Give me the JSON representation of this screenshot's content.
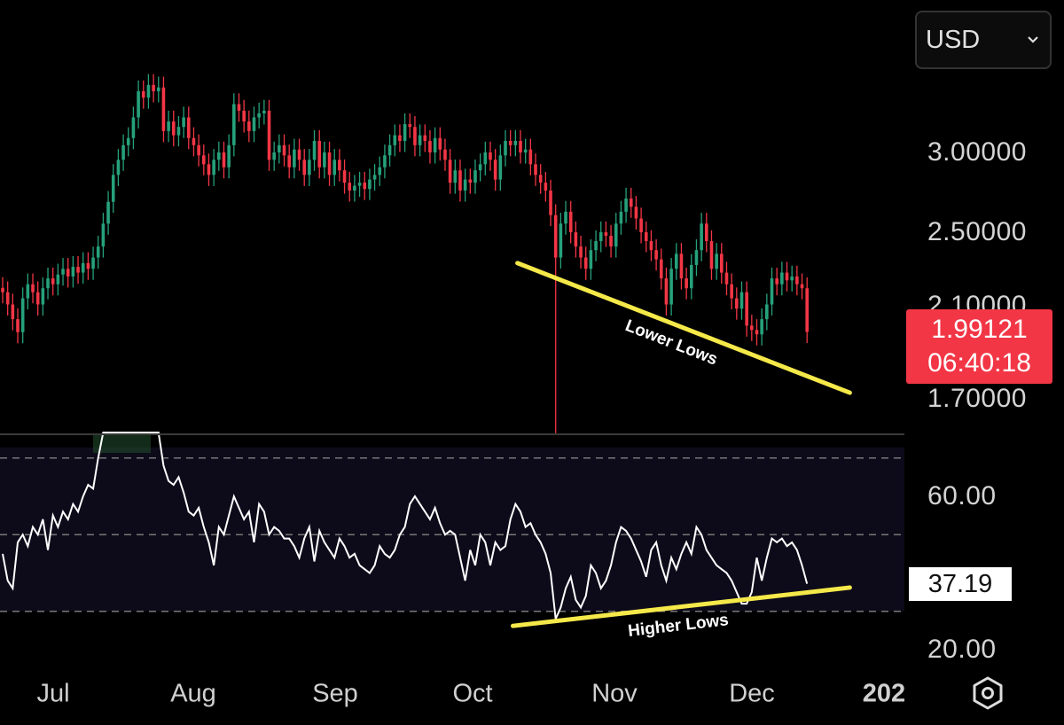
{
  "currency_selector": {
    "value": "USD"
  },
  "current_price": {
    "price": "1.99121",
    "countdown": "06:40:18",
    "color": "#f23645"
  },
  "rsi_current": {
    "value": "37.19"
  },
  "colors": {
    "up": "#26a17b",
    "down": "#f23645",
    "trendline": "#f5e94a",
    "rsi_line": "#ffffff",
    "rsi_band": "#0d0b1a"
  },
  "chart_data": [
    {
      "type": "candlestick",
      "scale": "log",
      "price_axis_labels": [
        "3.00000",
        "2.50000",
        "2.10000",
        "1.70000"
      ],
      "price_axis_values": [
        3.0,
        2.5,
        2.1,
        1.7
      ],
      "x_tick_labels": [
        "Jul",
        "Aug",
        "Sep",
        "Oct",
        "Nov",
        "Dec",
        "202"
      ],
      "x_tick_index": [
        10,
        38,
        66,
        93.5,
        121.7,
        149,
        175
      ],
      "closes": [
        2.18,
        2.12,
        2.05,
        1.99,
        2.15,
        2.22,
        2.18,
        2.12,
        2.2,
        2.25,
        2.22,
        2.27,
        2.3,
        2.26,
        2.31,
        2.28,
        2.33,
        2.3,
        2.36,
        2.42,
        2.55,
        2.68,
        2.85,
        2.95,
        3.05,
        3.1,
        3.25,
        3.45,
        3.4,
        3.5,
        3.45,
        3.48,
        3.15,
        3.22,
        3.12,
        3.18,
        3.25,
        3.1,
        3.05,
        2.98,
        2.92,
        2.85,
        2.95,
        3.0,
        2.9,
        3.05,
        3.35,
        3.3,
        3.22,
        3.15,
        3.25,
        3.28,
        3.3,
        2.95,
        3.0,
        3.05,
        2.98,
        2.9,
        3.02,
        2.95,
        2.85,
        2.95,
        3.08,
        2.9,
        3.0,
        2.85,
        2.95,
        2.88,
        2.8,
        2.75,
        2.78,
        2.8,
        2.76,
        2.82,
        2.85,
        2.9,
        2.98,
        3.05,
        3.12,
        3.08,
        3.2,
        3.18,
        3.05,
        3.12,
        3.08,
        3.0,
        3.1,
        3.02,
        2.95,
        2.8,
        2.88,
        2.75,
        2.82,
        2.8,
        2.88,
        2.92,
        3.0,
        2.95,
        2.82,
        2.98,
        3.08,
        3.05,
        3.08,
        3.0,
        3.02,
        2.92,
        2.85,
        2.8,
        2.75,
        2.6,
        2.36,
        2.55,
        2.62,
        2.5,
        2.42,
        2.36,
        2.3,
        2.4,
        2.45,
        2.5,
        2.48,
        2.42,
        2.55,
        2.62,
        2.7,
        2.65,
        2.58,
        2.5,
        2.45,
        2.4,
        2.35,
        2.25,
        2.12,
        2.3,
        2.38,
        2.25,
        2.2,
        2.32,
        2.4,
        2.55,
        2.45,
        2.3,
        2.38,
        2.28,
        2.22,
        2.15,
        2.1,
        2.18,
        2.02,
        2.0,
        1.98,
        2.05,
        2.12,
        2.25,
        2.22,
        2.28,
        2.24,
        2.26,
        2.22,
        2.2,
        1.99121
      ],
      "notable_wick": {
        "index": 110,
        "low": 1.58
      },
      "trendline": {
        "label": "Lower Lows",
        "from": {
          "index": 102.4,
          "price": 2.33
        },
        "to": {
          "index": 168.5,
          "price": 1.733
        }
      }
    },
    {
      "type": "line",
      "name": "RSI",
      "axis_labels": [
        "60.00",
        "20.00"
      ],
      "axis_values": [
        60,
        20
      ],
      "levels": [
        70,
        50,
        30
      ],
      "values": [
        45,
        38,
        36,
        48,
        50,
        47,
        52,
        50,
        54,
        46,
        55,
        52,
        56,
        54,
        58,
        56,
        60,
        63,
        62,
        70,
        78,
        85,
        90,
        95,
        98,
        99,
        99,
        99,
        98,
        97,
        95,
        90,
        68,
        64,
        63,
        65,
        61,
        56,
        55,
        57,
        52,
        48,
        42,
        52,
        50,
        55,
        60,
        57,
        54,
        56,
        48,
        58,
        56,
        50,
        52,
        51,
        49,
        49,
        47,
        44,
        49,
        52,
        43,
        51,
        48,
        46,
        44,
        49,
        47,
        44,
        45,
        42,
        41,
        40,
        42,
        47,
        45,
        44,
        46,
        50,
        52,
        58,
        60,
        58,
        56,
        54,
        57,
        53,
        50,
        51,
        50,
        44,
        38,
        46,
        42,
        50,
        48,
        42,
        48,
        46,
        47,
        54,
        58,
        56,
        52,
        53,
        50,
        48,
        45,
        40,
        28,
        31,
        36,
        39,
        33,
        31,
        34,
        42,
        40,
        36,
        38,
        42,
        48,
        52,
        51,
        49,
        46,
        43,
        39,
        46,
        48,
        42,
        38,
        44,
        41,
        45,
        48,
        45,
        52,
        50,
        46,
        44,
        42,
        41,
        40,
        38,
        35,
        32,
        32,
        35,
        44,
        38,
        44,
        49,
        48,
        49,
        47,
        48,
        46,
        42,
        37.19
      ],
      "trendline": {
        "label": "Higher Lows",
        "from": {
          "index": 101.5,
          "value": 26.2
        },
        "to": {
          "index": 168.5,
          "value": 36.2
        }
      }
    }
  ]
}
